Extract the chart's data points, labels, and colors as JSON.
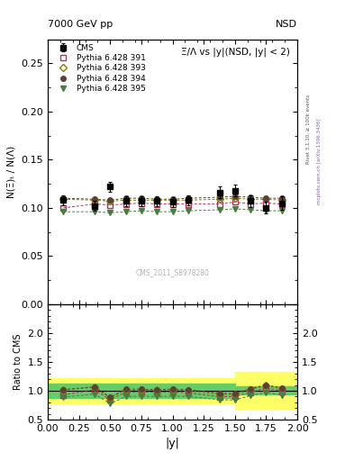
{
  "title_left": "7000 GeV pp",
  "title_right": "NSD",
  "plot_title": "Ξ̄/Λ vs |y|(NSD, |y| < 2)",
  "ylabel_main": "N(Ξ)ₜ / N(Λ)",
  "ylabel_ratio": "Ratio to CMS",
  "xlabel": "|y|",
  "watermark": "CMS_2011_S8978280",
  "rivet_label": "Rivet 3.1.10, ≥ 100k events",
  "mcplots_label": "mcplots.cern.ch [arXiv:1306.3436]",
  "xlim": [
    0,
    2.0
  ],
  "ylim_main": [
    0.0,
    0.275
  ],
  "ylim_ratio": [
    0.5,
    2.5
  ],
  "yticks_main": [
    0.0,
    0.05,
    0.1,
    0.15,
    0.2,
    0.25
  ],
  "yticks_ratio": [
    0.5,
    1.0,
    1.5,
    2.0
  ],
  "cms_x": [
    0.125,
    0.375,
    0.5,
    0.625,
    0.75,
    0.875,
    1.0,
    1.125,
    1.375,
    1.5,
    1.625,
    1.75,
    1.875
  ],
  "cms_y": [
    0.108,
    0.102,
    0.122,
    0.107,
    0.107,
    0.107,
    0.106,
    0.108,
    0.116,
    0.118,
    0.107,
    0.1,
    0.105
  ],
  "cms_yerr": [
    0.005,
    0.005,
    0.005,
    0.005,
    0.005,
    0.005,
    0.005,
    0.005,
    0.006,
    0.006,
    0.006,
    0.006,
    0.007
  ],
  "py391_x": [
    0.125,
    0.375,
    0.5,
    0.625,
    0.75,
    0.875,
    1.0,
    1.125,
    1.375,
    1.5,
    1.625,
    1.75,
    1.875
  ],
  "py391_y": [
    0.1,
    0.104,
    0.103,
    0.104,
    0.105,
    0.104,
    0.104,
    0.104,
    0.104,
    0.106,
    0.104,
    0.105,
    0.104
  ],
  "py393_x": [
    0.125,
    0.375,
    0.5,
    0.625,
    0.75,
    0.875,
    1.0,
    1.125,
    1.375,
    1.5,
    1.625,
    1.75,
    1.875
  ],
  "py393_y": [
    0.109,
    0.108,
    0.107,
    0.108,
    0.108,
    0.108,
    0.108,
    0.108,
    0.109,
    0.11,
    0.109,
    0.109,
    0.108
  ],
  "py394_x": [
    0.125,
    0.375,
    0.5,
    0.625,
    0.75,
    0.875,
    1.0,
    1.125,
    1.375,
    1.5,
    1.625,
    1.75,
    1.875
  ],
  "py394_y": [
    0.11,
    0.109,
    0.108,
    0.11,
    0.11,
    0.109,
    0.109,
    0.11,
    0.111,
    0.112,
    0.111,
    0.11,
    0.11
  ],
  "py395_x": [
    0.125,
    0.375,
    0.5,
    0.625,
    0.75,
    0.875,
    1.0,
    1.125,
    1.375,
    1.5,
    1.625,
    1.75,
    1.875
  ],
  "py395_y": [
    0.096,
    0.096,
    0.095,
    0.096,
    0.097,
    0.096,
    0.096,
    0.097,
    0.098,
    0.099,
    0.098,
    0.097,
    0.097
  ],
  "color_391": "#b03060",
  "color_393": "#808000",
  "color_394": "#5d4037",
  "color_395": "#4a7c3f",
  "marker_391": "s",
  "marker_393": "o",
  "marker_394": "o",
  "marker_395": "v"
}
